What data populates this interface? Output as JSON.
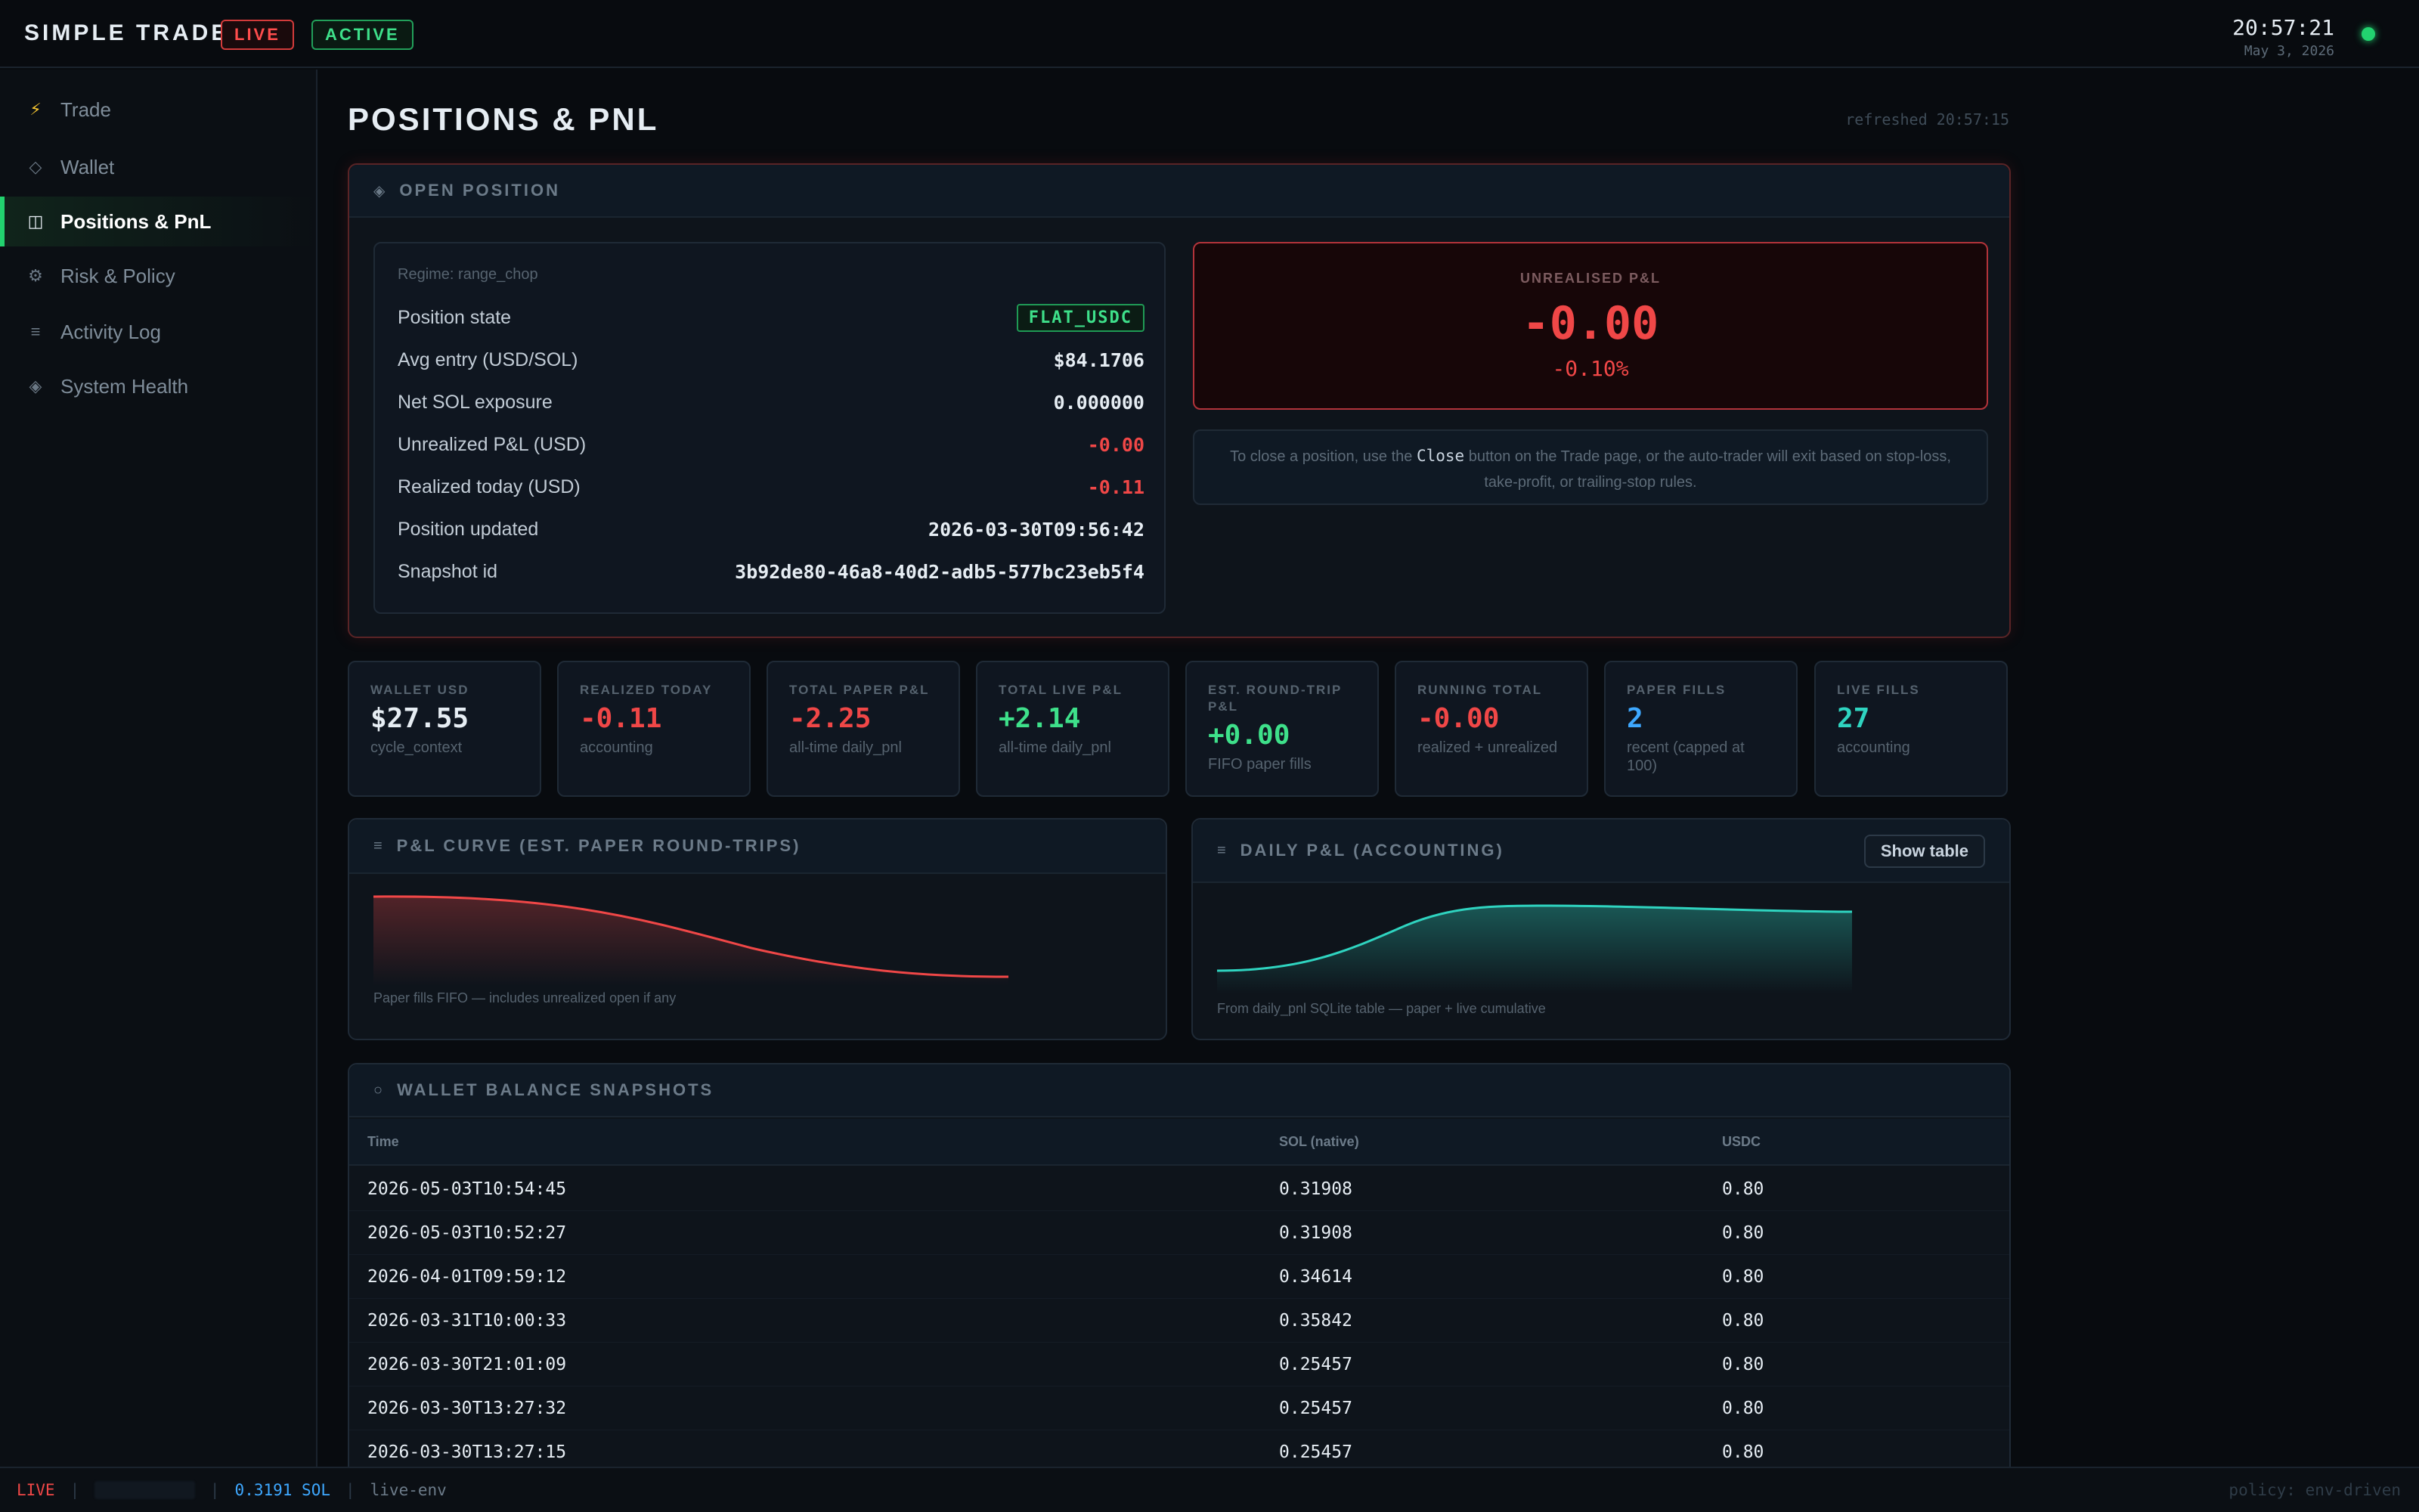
{
  "header": {
    "brand": "SIMPLE TRADER",
    "badge_live": "LIVE",
    "badge_active": "ACTIVE",
    "clock_time": "20:57:21",
    "clock_date": "May 3, 2026",
    "status_color": "#22d36f"
  },
  "sidebar": {
    "items": [
      {
        "label": "Trade",
        "icon": "lightning-icon",
        "glyph": "⚡"
      },
      {
        "label": "Wallet",
        "icon": "diamond-icon",
        "glyph": "◇"
      },
      {
        "label": "Positions & PnL",
        "icon": "columns-icon",
        "glyph": "◫",
        "active": true
      },
      {
        "label": "Risk & Policy",
        "icon": "gear-icon",
        "glyph": "⚙"
      },
      {
        "label": "Activity Log",
        "icon": "list-icon",
        "glyph": "≡"
      },
      {
        "label": "System Health",
        "icon": "diamond-filled-icon",
        "glyph": "◈"
      }
    ]
  },
  "page": {
    "title": "POSITIONS & PNL",
    "refreshed": "refreshed 20:57:15"
  },
  "open_position": {
    "header": "OPEN POSITION",
    "regime": "Regime: range_chop",
    "rows": [
      {
        "label": "Position state",
        "value": "FLAT_USDC"
      },
      {
        "label": "Avg entry (USD/SOL)",
        "value": "$84.1706"
      },
      {
        "label": "Net SOL exposure",
        "value": "0.000000"
      },
      {
        "label": "Unrealized P&L (USD)",
        "value": "-0.00"
      },
      {
        "label": "Realized today (USD)",
        "value": "-0.11"
      },
      {
        "label": "Position updated",
        "value": "2026-03-30T09:56:42"
      },
      {
        "label": "Snapshot id",
        "value": "3b92de80-46a8-40d2-adb5-577bc23eb5f4"
      }
    ],
    "unrealised_label": "UNREALISED P&L",
    "unrealised_value": "-0.00",
    "unrealised_pct": "-0.10%",
    "close_note_pre": "To close a position, use the",
    "close_note_kbd": "Close",
    "close_note_post": "button on the Trade page, or the auto-trader will exit based on stop-loss, take-profit, or trailing-stop rules."
  },
  "stats": [
    {
      "label": "WALLET USD",
      "value": "$27.55",
      "sub": "cycle_context",
      "color": "white"
    },
    {
      "label": "REALIZED TODAY",
      "value": "-0.11",
      "sub": "accounting",
      "color": "red"
    },
    {
      "label": "TOTAL PAPER P&L",
      "value": "-2.25",
      "sub": "all-time daily_pnl",
      "color": "red"
    },
    {
      "label": "TOTAL LIVE P&L",
      "value": "+2.14",
      "sub": "all-time daily_pnl",
      "color": "green"
    },
    {
      "label": "EST. ROUND-TRIP P&L",
      "value": "+0.00",
      "sub": "FIFO paper fills",
      "color": "green"
    },
    {
      "label": "RUNNING TOTAL",
      "value": "-0.00",
      "sub": "realized + unrealized",
      "color": "red"
    },
    {
      "label": "PAPER FILLS",
      "value": "2",
      "sub": "recent (capped at 100)",
      "color": "blue"
    },
    {
      "label": "LIVE FILLS",
      "value": "27",
      "sub": "accounting",
      "color": "teal"
    }
  ],
  "charts": {
    "pnl_curve": {
      "header": "P&L CURVE (EST. PAPER ROUND-TRIPS)",
      "caption": "Paper fills FIFO — includes unrealized open if any",
      "color": "#f04747"
    },
    "daily_pnl": {
      "header": "DAILY P&L (ACCOUNTING)",
      "caption": "From daily_pnl SQLite table — paper + live cumulative",
      "button": "Show table",
      "color": "#2fd4c0"
    }
  },
  "wallet_snapshots": {
    "header": "WALLET BALANCE SNAPSHOTS",
    "columns": [
      "Time",
      "SOL (native)",
      "USDC"
    ],
    "rows": [
      [
        "2026-05-03T10:54:45",
        "0.31908",
        "0.80"
      ],
      [
        "2026-05-03T10:52:27",
        "0.31908",
        "0.80"
      ],
      [
        "2026-04-01T09:59:12",
        "0.34614",
        "0.80"
      ],
      [
        "2026-03-31T10:00:33",
        "0.35842",
        "0.80"
      ],
      [
        "2026-03-30T21:01:09",
        "0.25457",
        "0.80"
      ],
      [
        "2026-03-30T13:27:32",
        "0.25457",
        "0.80"
      ],
      [
        "2026-03-30T13:27:15",
        "0.25457",
        "0.80"
      ]
    ]
  },
  "footer": {
    "mode": "LIVE",
    "sol": "0.3191 SOL",
    "env": "live-env",
    "policy": "policy: env-driven"
  }
}
